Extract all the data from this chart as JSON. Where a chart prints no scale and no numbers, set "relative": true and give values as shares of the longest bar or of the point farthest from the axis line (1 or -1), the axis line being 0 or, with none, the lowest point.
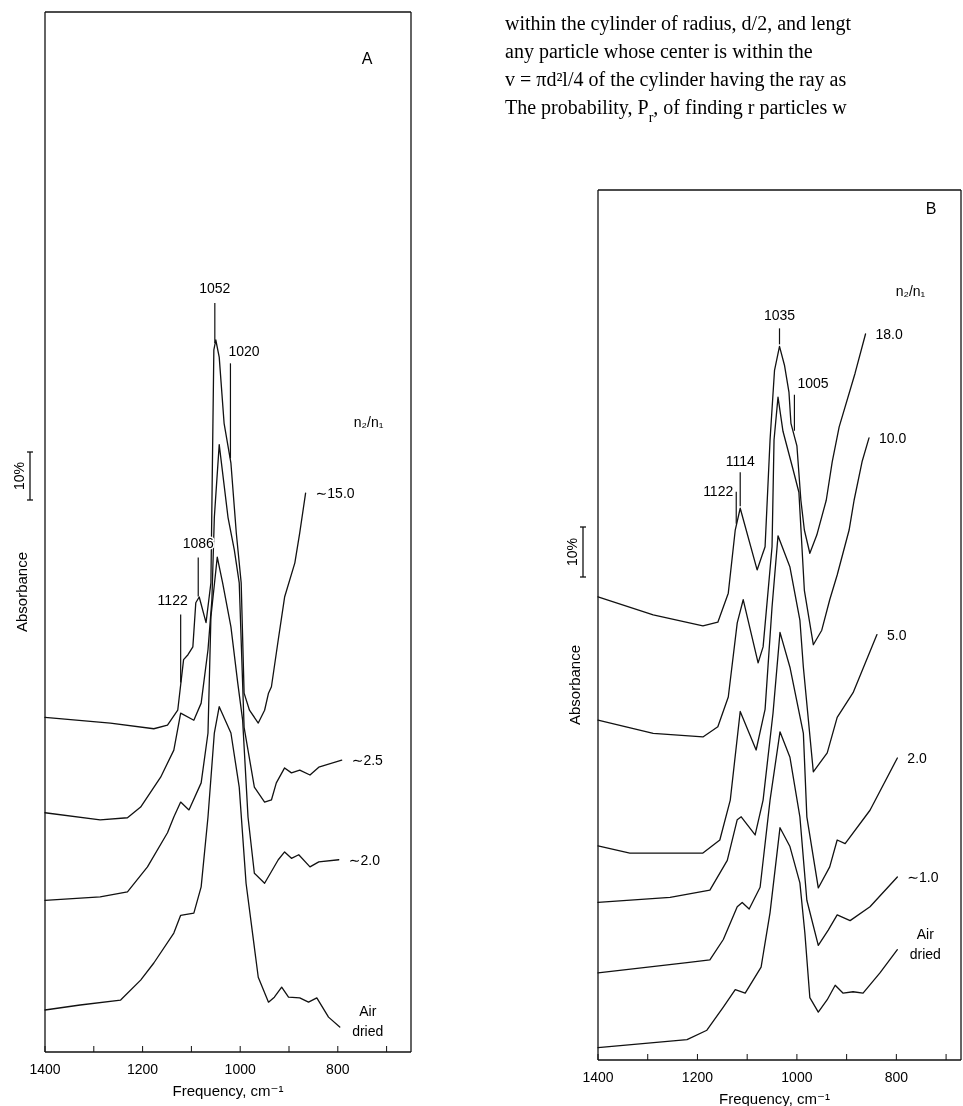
{
  "chart_data": [
    {
      "type": "line",
      "title": "A",
      "xlabel": "Frequency,  cm⁻¹",
      "ylabel": "Absorbance",
      "legend_title": "n₂/n₁",
      "relative": true,
      "xlim": [
        1400,
        650
      ],
      "xticks": [
        1400,
        {
          "value": 1300,
          "label": null
        },
        1200,
        {
          "value": 1100,
          "label": null
        },
        1000,
        {
          "value": 900,
          "label": null
        },
        800,
        {
          "value": 700,
          "label": null
        }
      ],
      "annotations": [
        "10%",
        {
          "text": "1052",
          "x": 1052,
          "y": 0.993
        },
        {
          "text": "1020",
          "x": 1020,
          "y": 0.831
        },
        {
          "text": "1086",
          "x": 1086,
          "y": 0.637
        },
        {
          "text": "1122",
          "x": 1122,
          "y": 0.516
        }
      ],
      "series": [
        {
          "name": "∼15.0",
          "color": "#111111",
          "x": [
            1400,
            1266,
            1177,
            1149,
            1128,
            1116,
            1107,
            1097,
            1091,
            1084,
            1070,
            1060,
            1054,
            1050,
            1043,
            1033,
            1019,
            1008,
            998,
            992,
            981,
            963,
            950,
            942,
            936,
            922,
            909,
            888,
            878,
            866
          ],
          "values": [
            0.47,
            0.462,
            0.454,
            0.459,
            0.48,
            0.551,
            0.558,
            0.569,
            0.631,
            0.639,
            0.603,
            0.659,
            0.986,
            1.0,
            0.976,
            0.883,
            0.827,
            0.729,
            0.659,
            0.504,
            0.48,
            0.462,
            0.48,
            0.504,
            0.513,
            0.579,
            0.639,
            0.687,
            0.729,
            0.785
          ]
        },
        {
          "name": "∼2.5",
          "color": "#111111",
          "x": [
            1400,
            1287,
            1231,
            1204,
            1163,
            1136,
            1122,
            1095,
            1080,
            1066,
            1058,
            1053,
            1043,
            1025,
            1012,
            1002,
            992,
            971,
            950,
            936,
            926,
            909,
            895,
            878,
            857,
            839,
            792
          ],
          "values": [
            0.336,
            0.326,
            0.329,
            0.344,
            0.386,
            0.424,
            0.476,
            0.466,
            0.49,
            0.565,
            0.635,
            0.751,
            0.853,
            0.751,
            0.705,
            0.659,
            0.456,
            0.372,
            0.351,
            0.354,
            0.378,
            0.399,
            0.392,
            0.396,
            0.389,
            0.4,
            0.41
          ]
        },
        {
          "name": "∼2.0",
          "color": "#111111",
          "x": [
            1400,
            1287,
            1231,
            1190,
            1149,
            1136,
            1122,
            1105,
            1080,
            1066,
            1060,
            1047,
            1036,
            1019,
            1005,
            995,
            984,
            971,
            950,
            922,
            909,
            895,
            880,
            857,
            839,
            798
          ],
          "values": [
            0.213,
            0.218,
            0.225,
            0.26,
            0.308,
            0.33,
            0.351,
            0.34,
            0.378,
            0.448,
            0.611,
            0.695,
            0.659,
            0.597,
            0.518,
            0.466,
            0.33,
            0.251,
            0.237,
            0.27,
            0.281,
            0.272,
            0.277,
            0.26,
            0.267,
            0.27
          ]
        },
        {
          "name": "Air dried",
          "color": "#111111",
          "x": [
            1400,
            1328,
            1245,
            1204,
            1177,
            1136,
            1122,
            1095,
            1080,
            1066,
            1053,
            1043,
            1019,
            1002,
            988,
            963,
            942,
            930,
            915,
            901,
            878,
            860,
            843,
            819,
            796
          ],
          "values": [
            0.059,
            0.066,
            0.073,
            0.101,
            0.125,
            0.167,
            0.192,
            0.195,
            0.232,
            0.33,
            0.448,
            0.485,
            0.448,
            0.372,
            0.237,
            0.105,
            0.07,
            0.077,
            0.091,
            0.077,
            0.076,
            0.07,
            0.076,
            0.049,
            0.035
          ]
        }
      ]
    },
    {
      "type": "line",
      "title": "B",
      "xlabel": "Frequency,  cm⁻¹",
      "ylabel": "Absorbance",
      "legend_title": "n₂/n₁",
      "relative": true,
      "xlim": [
        1400,
        670
      ],
      "xticks": [
        1400,
        {
          "value": 1300,
          "label": null
        },
        1200,
        {
          "value": 1100,
          "label": null
        },
        1000,
        {
          "value": 900,
          "label": null
        },
        800,
        {
          "value": 700,
          "label": null
        }
      ],
      "annotations": [
        "10%",
        {
          "text": "1035",
          "x": 1035,
          "y": 0.983
        },
        {
          "text": "1005",
          "x": 1005,
          "y": 0.864
        },
        {
          "text": "1114",
          "x": 1114,
          "y": 0.76
        },
        {
          "text": "1122",
          "x": 1122,
          "y": 0.736
        }
      ],
      "series": [
        {
          "name": "18.0",
          "color": "#111111",
          "x": [
            1400,
            1289,
            1189,
            1159,
            1138,
            1124,
            1114,
            1080,
            1064,
            1054,
            1045,
            1035,
            1025,
            1016,
            1012,
            1000,
            992,
            985,
            974,
            960,
            941,
            929,
            915,
            883,
            862
          ],
          "values": [
            0.638,
            0.613,
            0.598,
            0.603,
            0.643,
            0.73,
            0.76,
            0.675,
            0.707,
            0.854,
            0.95,
            0.983,
            0.957,
            0.92,
            0.877,
            0.846,
            0.771,
            0.73,
            0.698,
            0.723,
            0.771,
            0.824,
            0.872,
            0.946,
            1.0
          ]
        },
        {
          "name": "10.0",
          "color": "#111111",
          "x": [
            1400,
            1289,
            1189,
            1159,
            1138,
            1120,
            1108,
            1078,
            1068,
            1050,
            1046,
            1038,
            1028,
            1008,
            996,
            985,
            967,
            950,
            934,
            919,
            895,
            885,
            869,
            855
          ],
          "values": [
            0.468,
            0.45,
            0.445,
            0.459,
            0.5,
            0.602,
            0.634,
            0.547,
            0.569,
            0.707,
            0.854,
            0.913,
            0.866,
            0.814,
            0.782,
            0.647,
            0.572,
            0.592,
            0.634,
            0.668,
            0.73,
            0.771,
            0.824,
            0.857
          ]
        },
        {
          "name": "5.0",
          "color": "#111111",
          "x": [
            1400,
            1336,
            1189,
            1155,
            1134,
            1114,
            1082,
            1064,
            1050,
            1038,
            1014,
            994,
            987,
            967,
            939,
            919,
            887,
            839
          ],
          "values": [
            0.295,
            0.285,
            0.285,
            0.303,
            0.358,
            0.48,
            0.427,
            0.483,
            0.624,
            0.722,
            0.679,
            0.606,
            0.541,
            0.397,
            0.423,
            0.472,
            0.506,
            0.586
          ]
        },
        {
          "name": "2.0",
          "color": "#111111",
          "x": [
            1400,
            1255,
            1175,
            1140,
            1120,
            1112,
            1084,
            1068,
            1048,
            1034,
            1014,
            987,
            980,
            957,
            934,
            919,
            903,
            853,
            798
          ],
          "values": [
            0.217,
            0.224,
            0.234,
            0.275,
            0.331,
            0.335,
            0.31,
            0.358,
            0.478,
            0.589,
            0.541,
            0.45,
            0.335,
            0.237,
            0.266,
            0.303,
            0.298,
            0.344,
            0.416
          ]
        },
        {
          "name": "∼1.0",
          "color": "#111111",
          "x": [
            1400,
            1221,
            1175,
            1148,
            1120,
            1110,
            1096,
            1074,
            1054,
            1034,
            1014,
            994,
            980,
            957,
            937,
            919,
            893,
            853,
            798
          ],
          "values": [
            0.12,
            0.134,
            0.138,
            0.166,
            0.211,
            0.217,
            0.208,
            0.238,
            0.358,
            0.452,
            0.417,
            0.335,
            0.22,
            0.158,
            0.179,
            0.2,
            0.192,
            0.211,
            0.252
          ]
        },
        {
          "name": "Air dried",
          "color": "#111111",
          "x": [
            1400,
            1221,
            1181,
            1148,
            1124,
            1104,
            1072,
            1054,
            1034,
            1014,
            994,
            984,
            974,
            957,
            939,
            923,
            907,
            887,
            867,
            833,
            798
          ],
          "values": [
            0.017,
            0.028,
            0.041,
            0.073,
            0.097,
            0.092,
            0.128,
            0.203,
            0.32,
            0.294,
            0.244,
            0.175,
            0.086,
            0.066,
            0.083,
            0.103,
            0.092,
            0.094,
            0.092,
            0.12,
            0.152
          ]
        }
      ]
    },
    {
      "type": "other",
      "annotations": [
        "within the cylinder of radius, d/2, and lengt",
        "any particle whose center is within the",
        "v = πd²l/4 of the cylinder having the ray as",
        "The probability, P$_{r}$, of finding r particles w"
      ]
    }
  ]
}
